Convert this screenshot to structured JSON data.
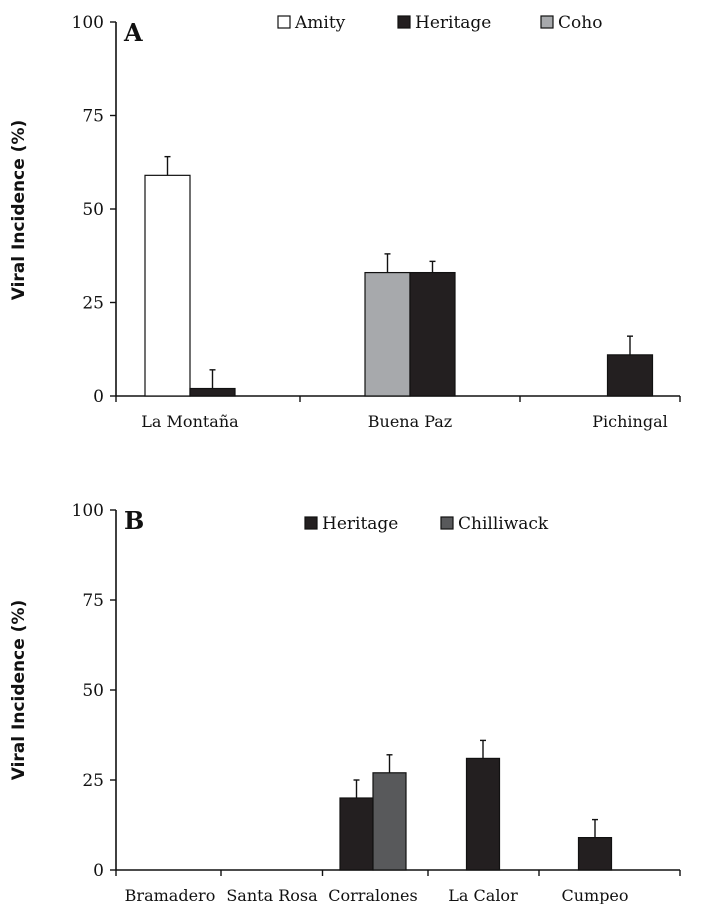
{
  "chart_data": [
    {
      "type": "bar",
      "panel_label": "A",
      "ylabel": "Viral Incidence (%)",
      "ylim": [
        0,
        100
      ],
      "yticks": [
        0,
        25,
        50,
        75,
        100
      ],
      "categories": [
        "La Montaña",
        "Buena Paz",
        "Pichingal"
      ],
      "legend_position": "top-right",
      "series": [
        {
          "name": "Amity",
          "color": "#ffffff",
          "values": [
            59,
            null,
            null
          ],
          "errors": [
            5,
            null,
            null
          ]
        },
        {
          "name": "Heritage",
          "color": "#231f20",
          "values": [
            2,
            33,
            11
          ],
          "errors": [
            5,
            3,
            5
          ]
        },
        {
          "name": "Coho",
          "color": "#a7a9ac",
          "values": [
            null,
            33,
            null
          ],
          "errors": [
            null,
            5,
            null
          ]
        }
      ]
    },
    {
      "type": "bar",
      "panel_label": "B",
      "ylabel": "Viral Incidence (%)",
      "ylim": [
        0,
        100
      ],
      "yticks": [
        0,
        25,
        50,
        75,
        100
      ],
      "categories": [
        "Bramadero",
        "Santa Rosa",
        "Corralones",
        "La Calor",
        "Cumpeo"
      ],
      "legend_position": "top-center",
      "series": [
        {
          "name": "Heritage",
          "color": "#231f20",
          "values": [
            null,
            null,
            20,
            31,
            9
          ],
          "errors": [
            null,
            null,
            5,
            5,
            5
          ]
        },
        {
          "name": "Chilliwack",
          "color": "#58595b",
          "values": [
            null,
            null,
            27,
            null,
            null
          ],
          "errors": [
            null,
            null,
            5,
            null,
            null
          ]
        }
      ]
    }
  ]
}
